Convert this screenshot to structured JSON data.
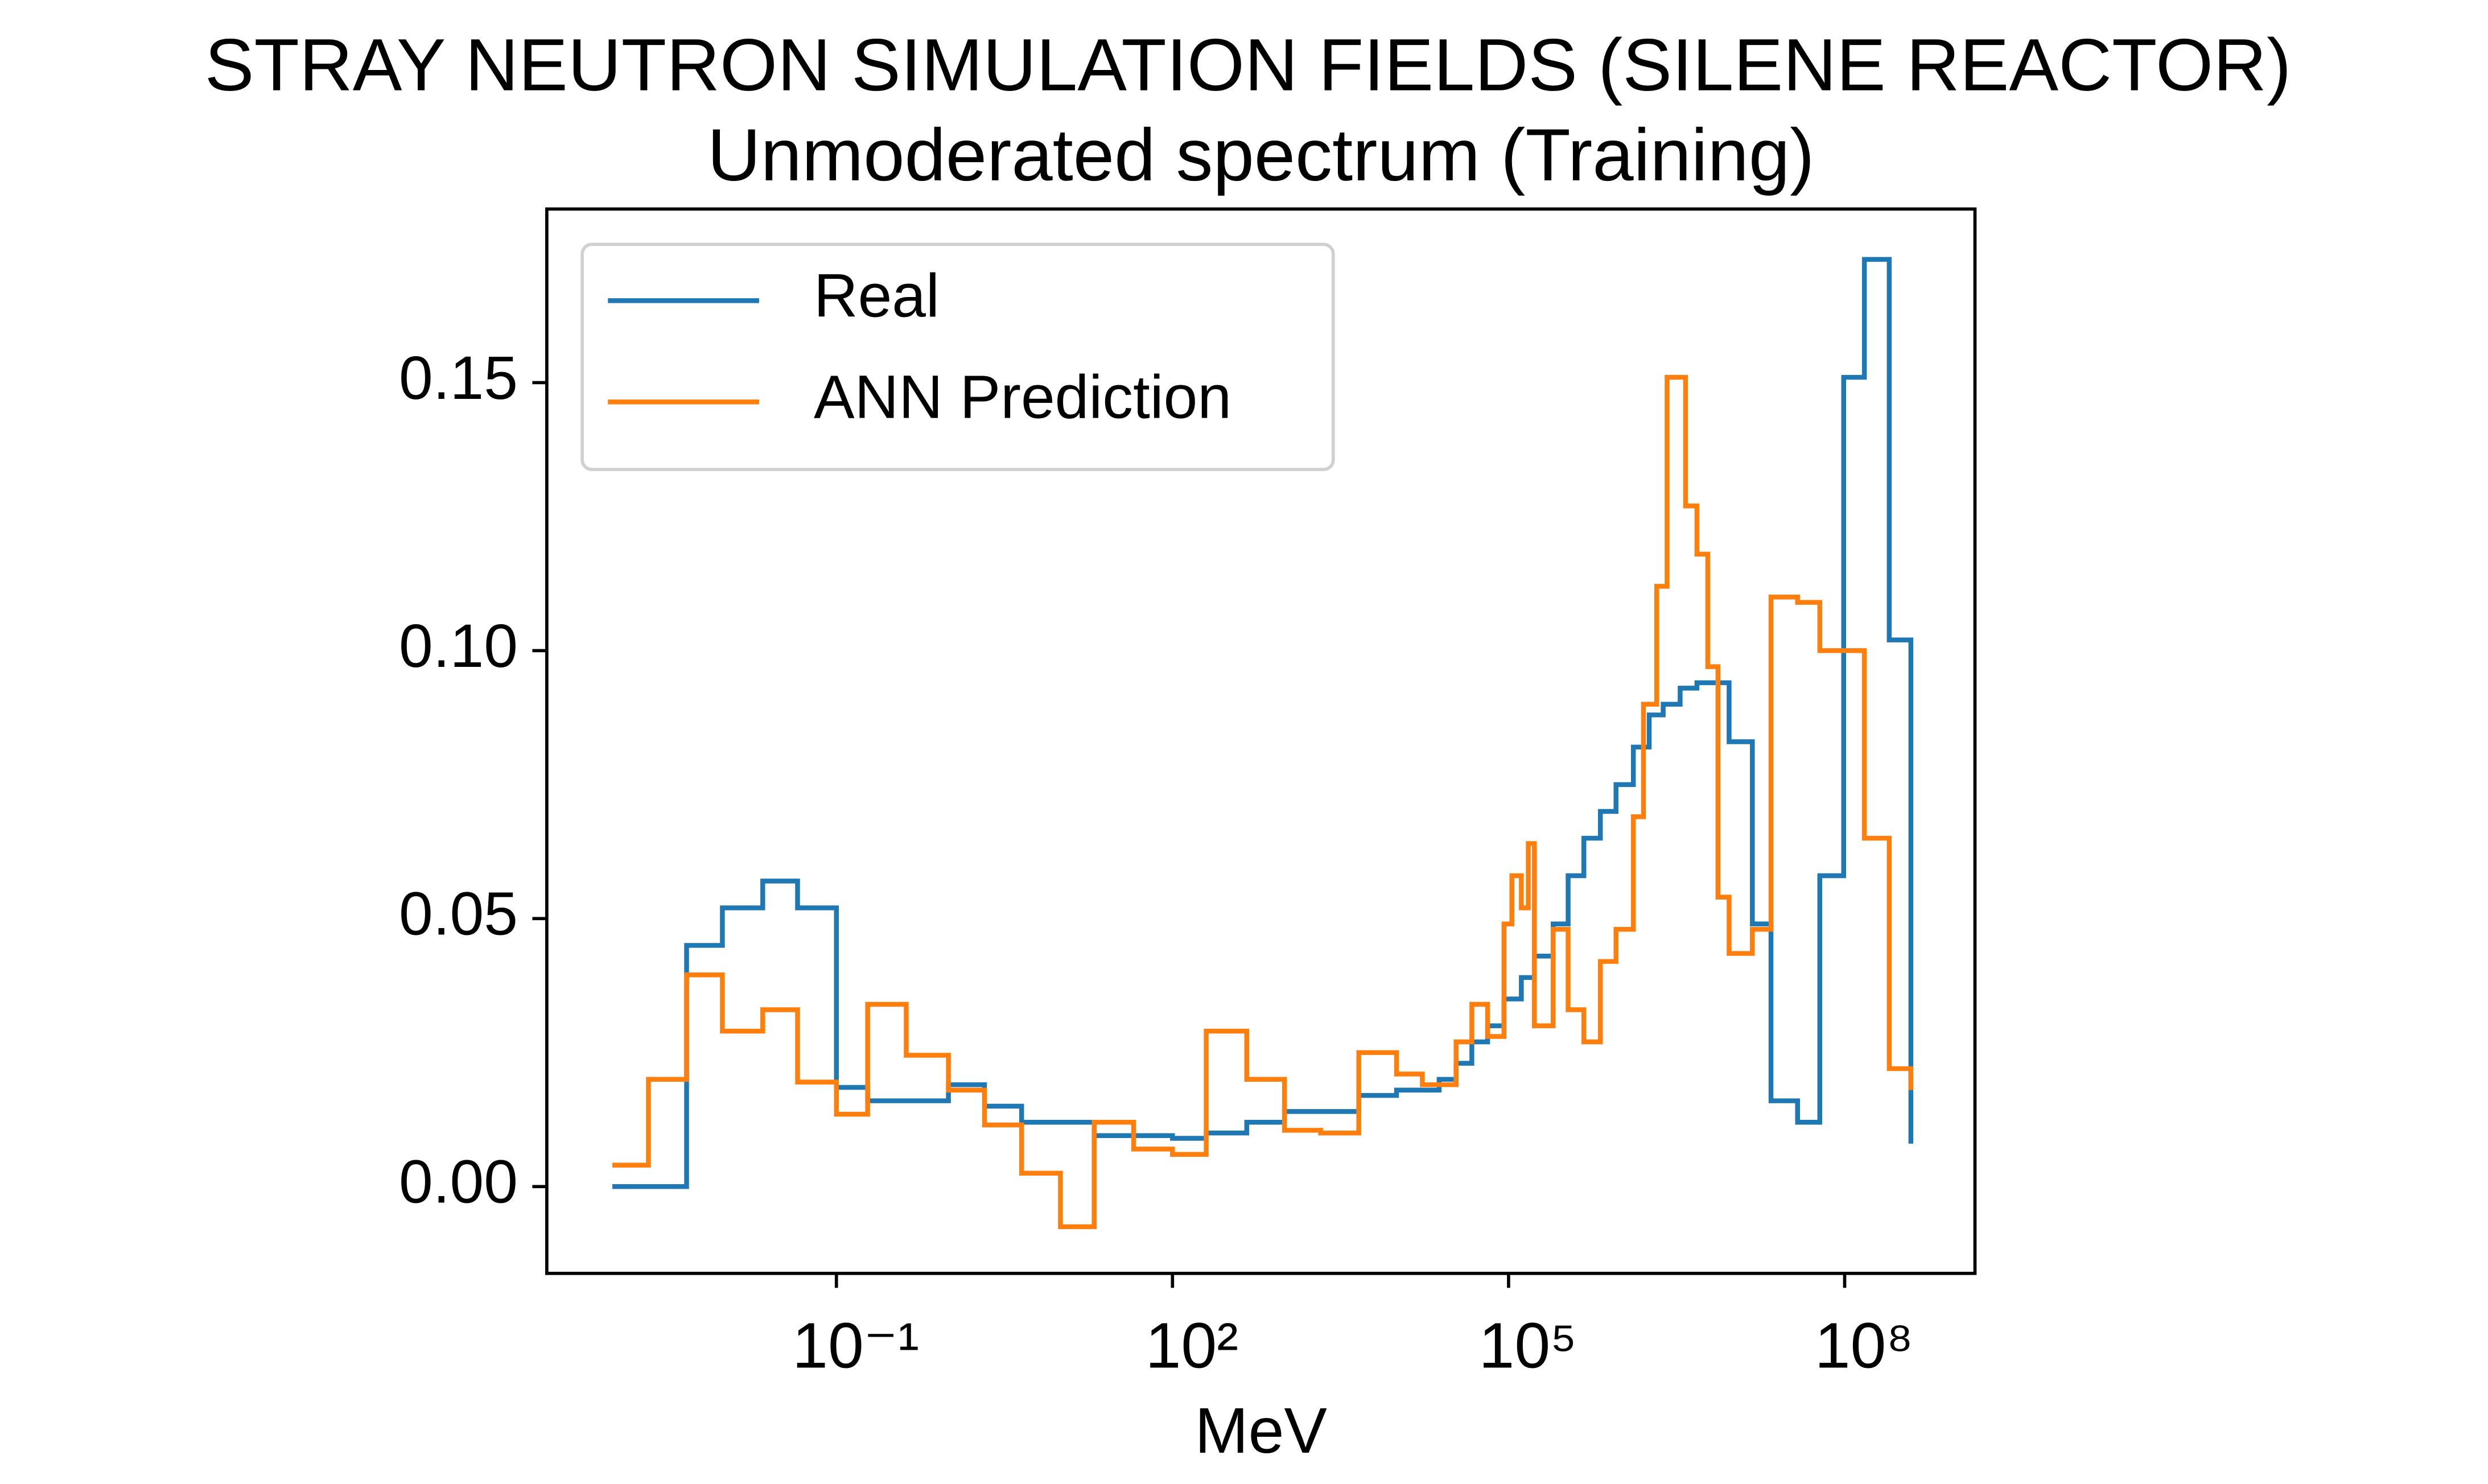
{
  "chart_data": {
    "type": "step",
    "title": "STRAY NEUTRON SIMULATION FIELDS (SILENE REACTOR)",
    "subtitle": "Unmoderated spectrum (Training)",
    "x_label": "MeV",
    "x_scale": "log",
    "xlim": [
      0.00026,
      1456000000
    ],
    "ylim": [
      -0.0162,
      0.1824
    ],
    "xticks": [
      {
        "value": 0.1,
        "label": "10⁻¹"
      },
      {
        "value": 100,
        "label": "10²"
      },
      {
        "value": 100000,
        "label": "10⁵"
      },
      {
        "value": 100000000,
        "label": "10⁸"
      }
    ],
    "yticks": [
      {
        "value": 0,
        "label": "0.00"
      },
      0.05,
      {
        "value": 0.1,
        "label": "0.10"
      },
      0.15
    ],
    "legend": "upper left",
    "series": [
      {
        "name": "Real",
        "color": "#1f77b4",
        "x": [
          0.001,
          0.0046,
          0.0096,
          0.022,
          0.045,
          0.1,
          0.19,
          1.0,
          2.1,
          4.5,
          20,
          100,
          200,
          460,
          1000,
          4600,
          10000,
          24000,
          34000,
          47000,
          65000,
          91000,
          130000,
          170000,
          250000,
          340000,
          470000,
          660000,
          910000,
          1300000,
          1800000,
          2400000,
          3400000,
          4800000,
          9300000,
          15000000,
          22000000,
          38000000,
          60000000,
          98000000,
          150000000,
          250000000,
          390000000
        ],
        "values": [
          0.0,
          0.045,
          0.052,
          0.057,
          0.052,
          0.0185,
          0.016,
          0.019,
          0.015,
          0.012,
          0.0095,
          0.009,
          0.01,
          0.012,
          0.014,
          0.017,
          0.018,
          0.02,
          0.023,
          0.027,
          0.03,
          0.035,
          0.039,
          0.043,
          0.049,
          0.058,
          0.065,
          0.07,
          0.075,
          0.082,
          0.088,
          0.09,
          0.093,
          0.094,
          0.083,
          0.049,
          0.016,
          0.012,
          0.058,
          0.151,
          0.173,
          0.102,
          0.008
        ]
      },
      {
        "name": "ANN Prediction",
        "color": "#ff7f0e",
        "x": [
          0.001,
          0.0021,
          0.0046,
          0.0096,
          0.022,
          0.045,
          0.1,
          0.19,
          0.42,
          1.0,
          2.1,
          4.5,
          10,
          20,
          45,
          100,
          200,
          460,
          1000,
          2100,
          4600,
          10000,
          17000,
          34000,
          47000,
          65000,
          91000,
          107000,
          130000,
          150000,
          170000,
          250000,
          340000,
          470000,
          660000,
          910000,
          1300000,
          1600000,
          2100000,
          2600000,
          3800000,
          4800000,
          6000000,
          7400000,
          9300000,
          15000000,
          22000000,
          38000000,
          60000000,
          98000000,
          150000000,
          250000000,
          390000000
        ],
        "values": [
          0.004,
          0.02,
          0.0395,
          0.029,
          0.033,
          0.0195,
          0.0135,
          0.034,
          0.0245,
          0.018,
          0.0115,
          0.0025,
          -0.0075,
          0.012,
          0.007,
          0.006,
          0.029,
          0.02,
          0.0105,
          0.01,
          0.025,
          0.021,
          0.019,
          0.027,
          0.034,
          0.028,
          0.049,
          0.058,
          0.052,
          0.064,
          0.03,
          0.048,
          0.033,
          0.027,
          0.042,
          0.048,
          0.069,
          0.09,
          0.112,
          0.151,
          0.127,
          0.118,
          0.097,
          0.054,
          0.0435,
          0.048,
          0.11,
          0.109,
          0.1,
          0.1,
          0.065,
          0.022,
          0.018
        ]
      }
    ]
  }
}
